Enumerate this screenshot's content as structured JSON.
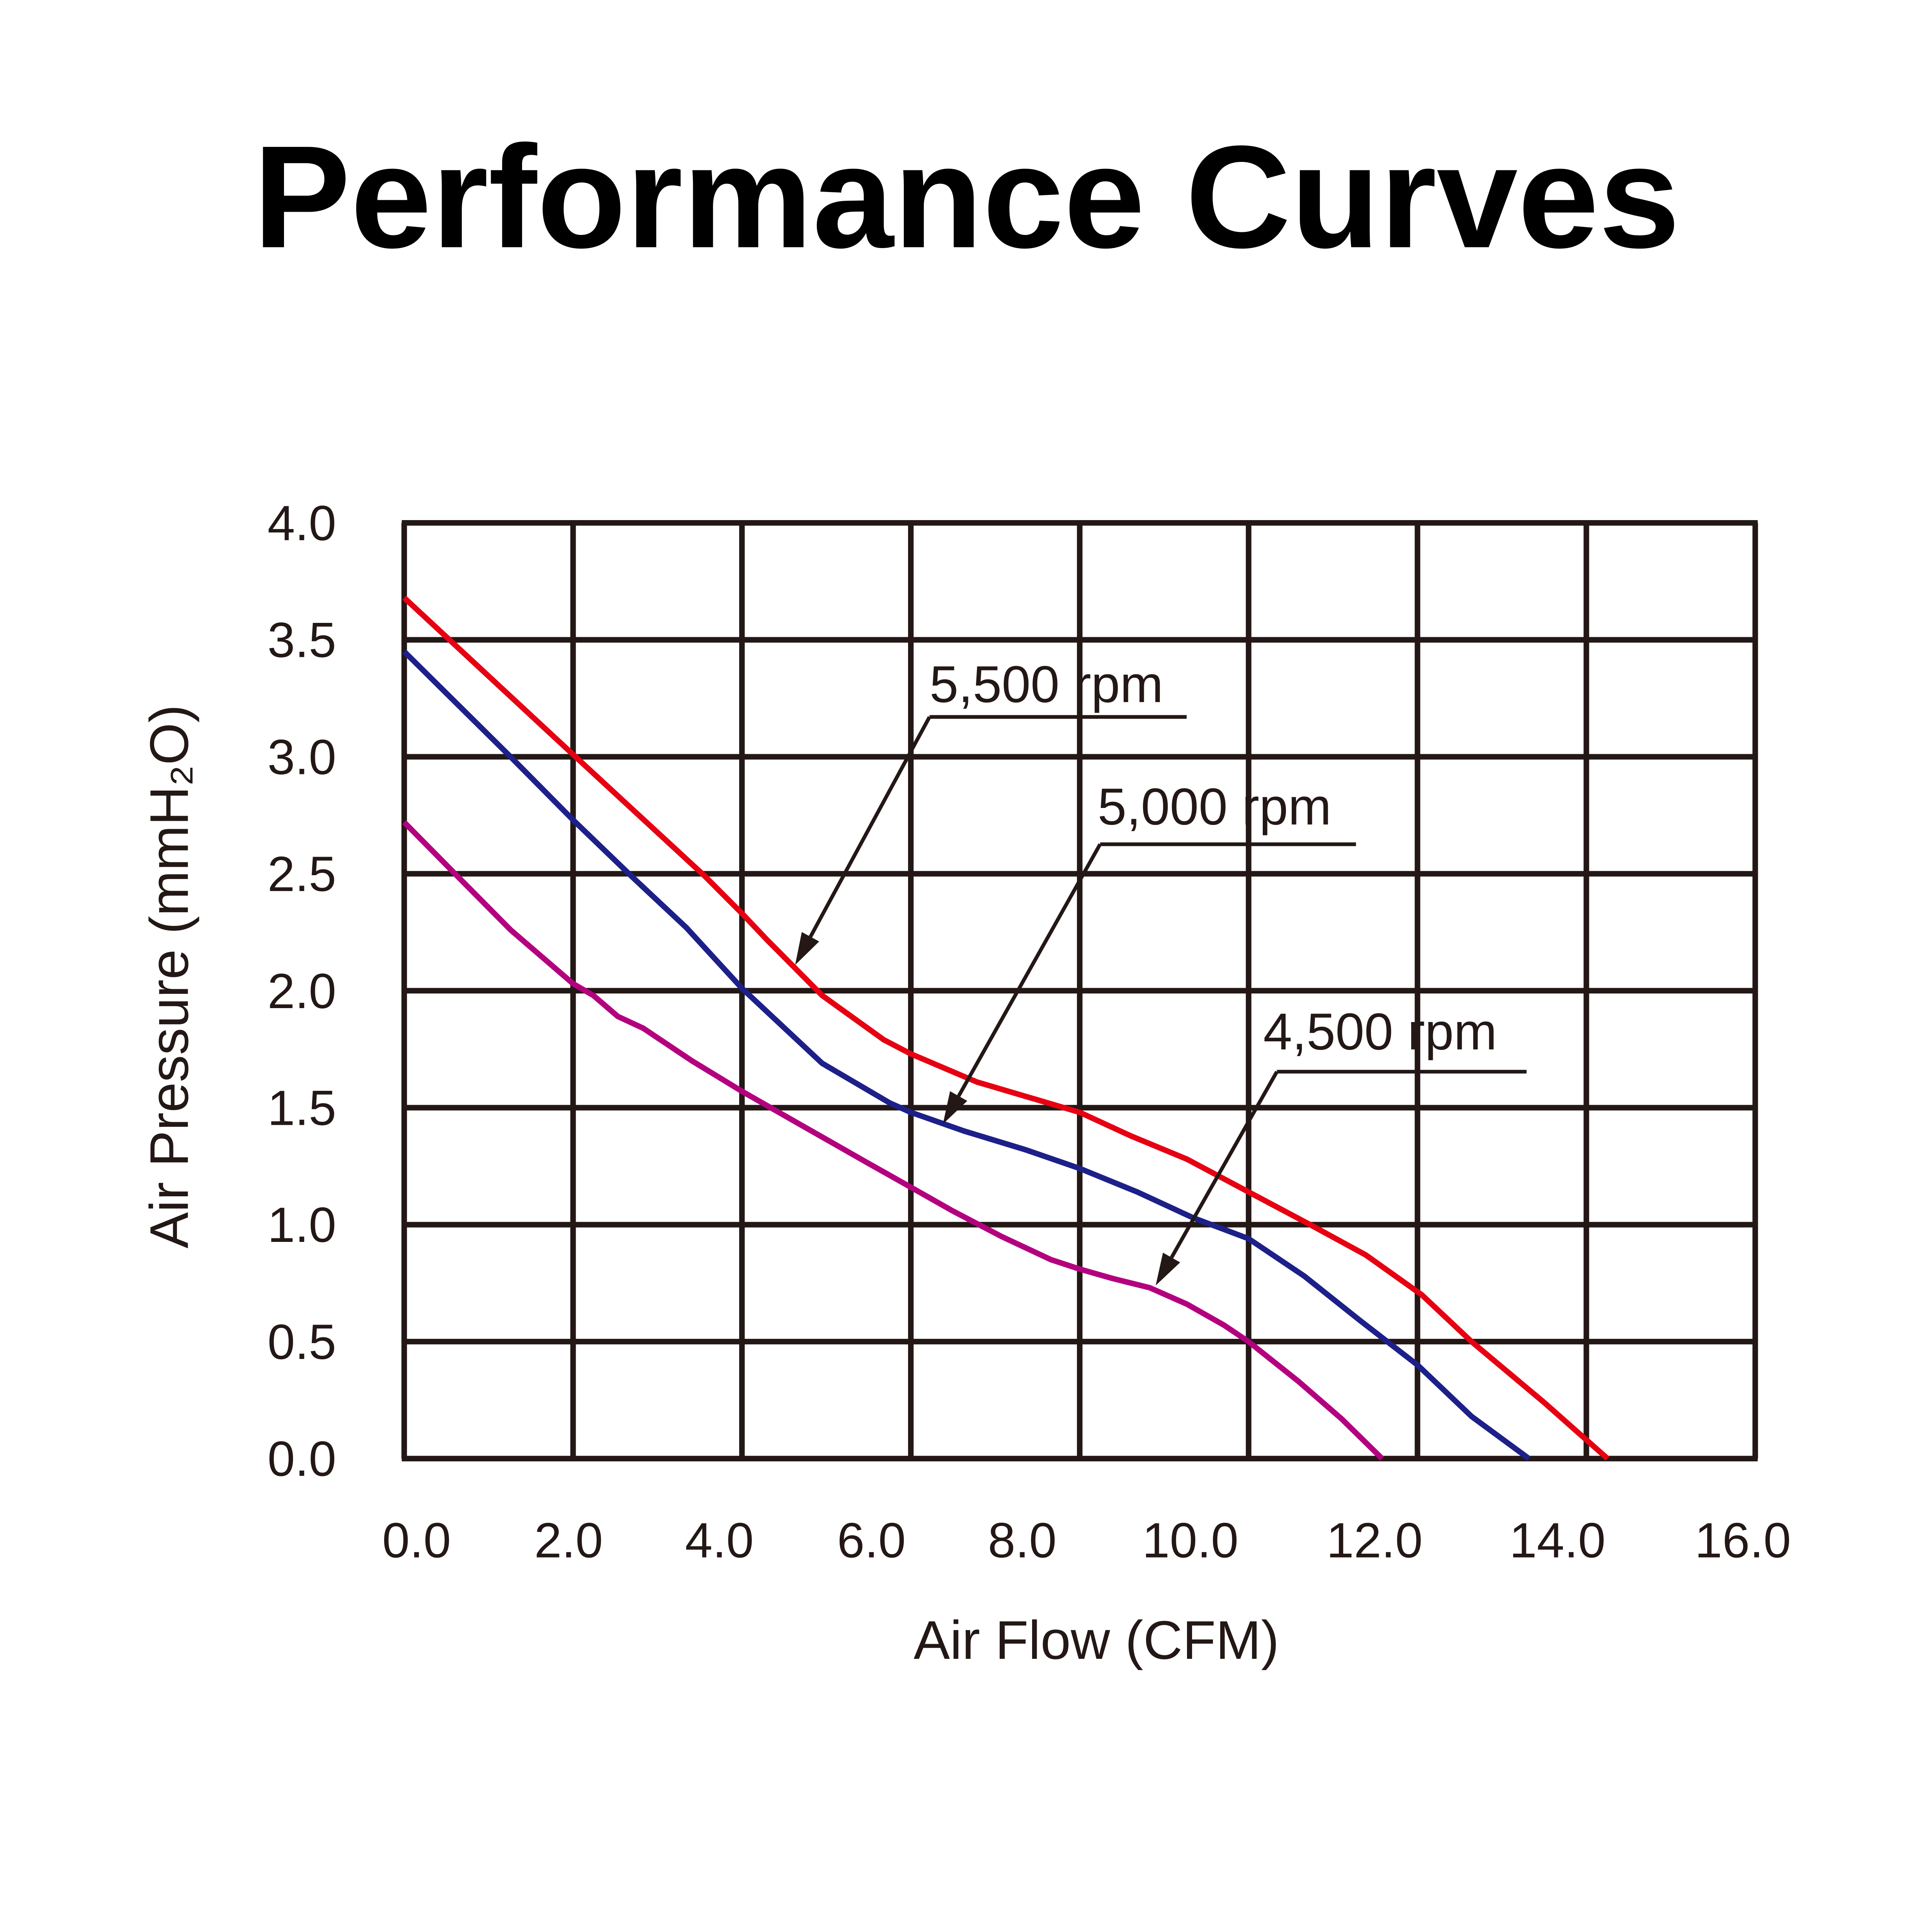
{
  "chart_data": {
    "type": "line",
    "title": "Performance Curves",
    "xlabel": "Air Flow (CFM)",
    "ylabel": "Air Pressure (mmH₂O)",
    "xlim": [
      0,
      16
    ],
    "ylim": [
      0,
      4
    ],
    "grid": true,
    "x_ticks": [
      "0.0",
      "2.0",
      "4.0",
      "6.0",
      "8.0",
      "10.0",
      "12.0",
      "14.0",
      "16.0"
    ],
    "y_ticks": [
      "0.0",
      "0.5",
      "1.0",
      "1.5",
      "2.0",
      "2.5",
      "3.0",
      "3.5",
      "4.0"
    ],
    "colors": {
      "grid": "#231815",
      "annotation": "#231815"
    },
    "series": [
      {
        "name": "5,500 rpm",
        "color": "#e60012",
        "points_to": [
          4.63,
          2.11
        ],
        "x": [
          0,
          2.0,
          3.56,
          4.0,
          4.29,
          4.95,
          5.68,
          6.0,
          6.78,
          8.0,
          8.6,
          9.27,
          10.0,
          10.73,
          11.39,
          12.05,
          12.64,
          13.5,
          14.25
        ],
        "y": [
          3.68,
          3.01,
          2.49,
          2.33,
          2.22,
          1.98,
          1.79,
          1.73,
          1.61,
          1.48,
          1.38,
          1.28,
          1.14,
          1.0,
          0.87,
          0.7,
          0.5,
          0.24,
          0.0
        ]
      },
      {
        "name": "5,000 rpm",
        "color": "#1d2088",
        "points_to": [
          6.38,
          1.43
        ],
        "x": [
          0,
          1.26,
          2.0,
          2.69,
          3.34,
          4.0,
          4.95,
          5.75,
          6.0,
          6.63,
          7.36,
          8.0,
          8.68,
          9.34,
          10.0,
          10.66,
          11.32,
          12.0,
          12.64,
          13.32
        ],
        "y": [
          3.45,
          3.0,
          2.73,
          2.49,
          2.27,
          2.01,
          1.69,
          1.52,
          1.48,
          1.4,
          1.32,
          1.24,
          1.14,
          1.03,
          0.94,
          0.78,
          0.59,
          0.4,
          0.18,
          0.0
        ]
      },
      {
        "name": "4,500 rpm",
        "color": "#b3007f",
        "points_to": [
          8.9,
          0.74
        ],
        "x": [
          0,
          0.63,
          1.26,
          2.0,
          2.24,
          2.53,
          2.83,
          3.41,
          4.0,
          4.73,
          5.46,
          6.0,
          6.49,
          7.07,
          7.66,
          8.0,
          8.39,
          8.83,
          9.27,
          9.71,
          10.0,
          10.59,
          11.1,
          11.58
        ],
        "y": [
          2.72,
          2.49,
          2.26,
          2.03,
          1.98,
          1.89,
          1.84,
          1.7,
          1.57,
          1.42,
          1.27,
          1.16,
          1.06,
          0.95,
          0.85,
          0.81,
          0.77,
          0.73,
          0.66,
          0.57,
          0.5,
          0.33,
          0.17,
          0.0
        ]
      }
    ]
  }
}
